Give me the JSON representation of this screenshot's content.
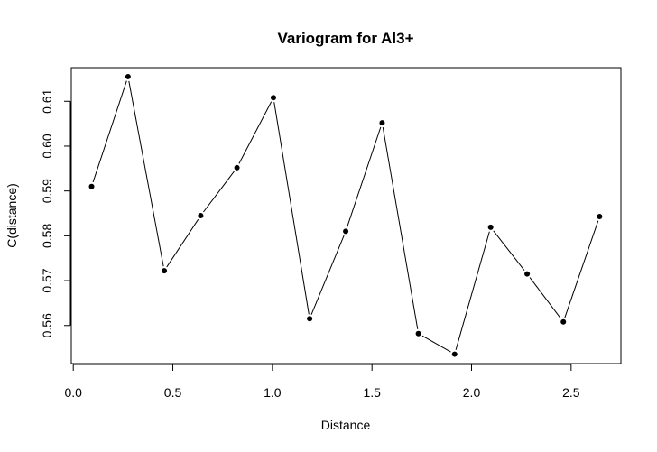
{
  "chart_data": {
    "type": "line",
    "title": "Variogram for Al3+",
    "xlabel": "Distance",
    "ylabel": "C(distance)",
    "xlim": [
      -0.01,
      2.75
    ],
    "ylim": [
      0.5515,
      0.6175
    ],
    "x_ticks": [
      {
        "value": 0.0,
        "label": "0.0"
      },
      {
        "value": 0.5,
        "label": "0.5"
      },
      {
        "value": 1.0,
        "label": "1.0"
      },
      {
        "value": 1.5,
        "label": "1.5"
      },
      {
        "value": 2.0,
        "label": "2.0"
      },
      {
        "value": 2.5,
        "label": "2.5"
      }
    ],
    "y_ticks": [
      {
        "value": 0.56,
        "label": "0.56"
      },
      {
        "value": 0.57,
        "label": "0.57"
      },
      {
        "value": 0.58,
        "label": "0.58"
      },
      {
        "value": 0.59,
        "label": "0.59"
      },
      {
        "value": 0.6,
        "label": "0.60"
      },
      {
        "value": 0.61,
        "label": "0.61"
      }
    ],
    "grid": false,
    "series": [
      {
        "x": [
          0.092,
          0.275,
          0.457,
          0.64,
          0.822,
          1.005,
          1.187,
          1.368,
          1.551,
          1.733,
          1.915,
          2.096,
          2.279,
          2.461,
          2.643
        ],
        "y": [
          0.591,
          0.6155,
          0.5722,
          0.5845,
          0.5952,
          0.6108,
          0.5615,
          0.581,
          0.6052,
          0.5582,
          0.5536,
          0.5819,
          0.5715,
          0.5608,
          0.5843
        ]
      }
    ],
    "colors": {
      "line": "#000000",
      "point": "#000000",
      "axis": "#000000"
    }
  }
}
